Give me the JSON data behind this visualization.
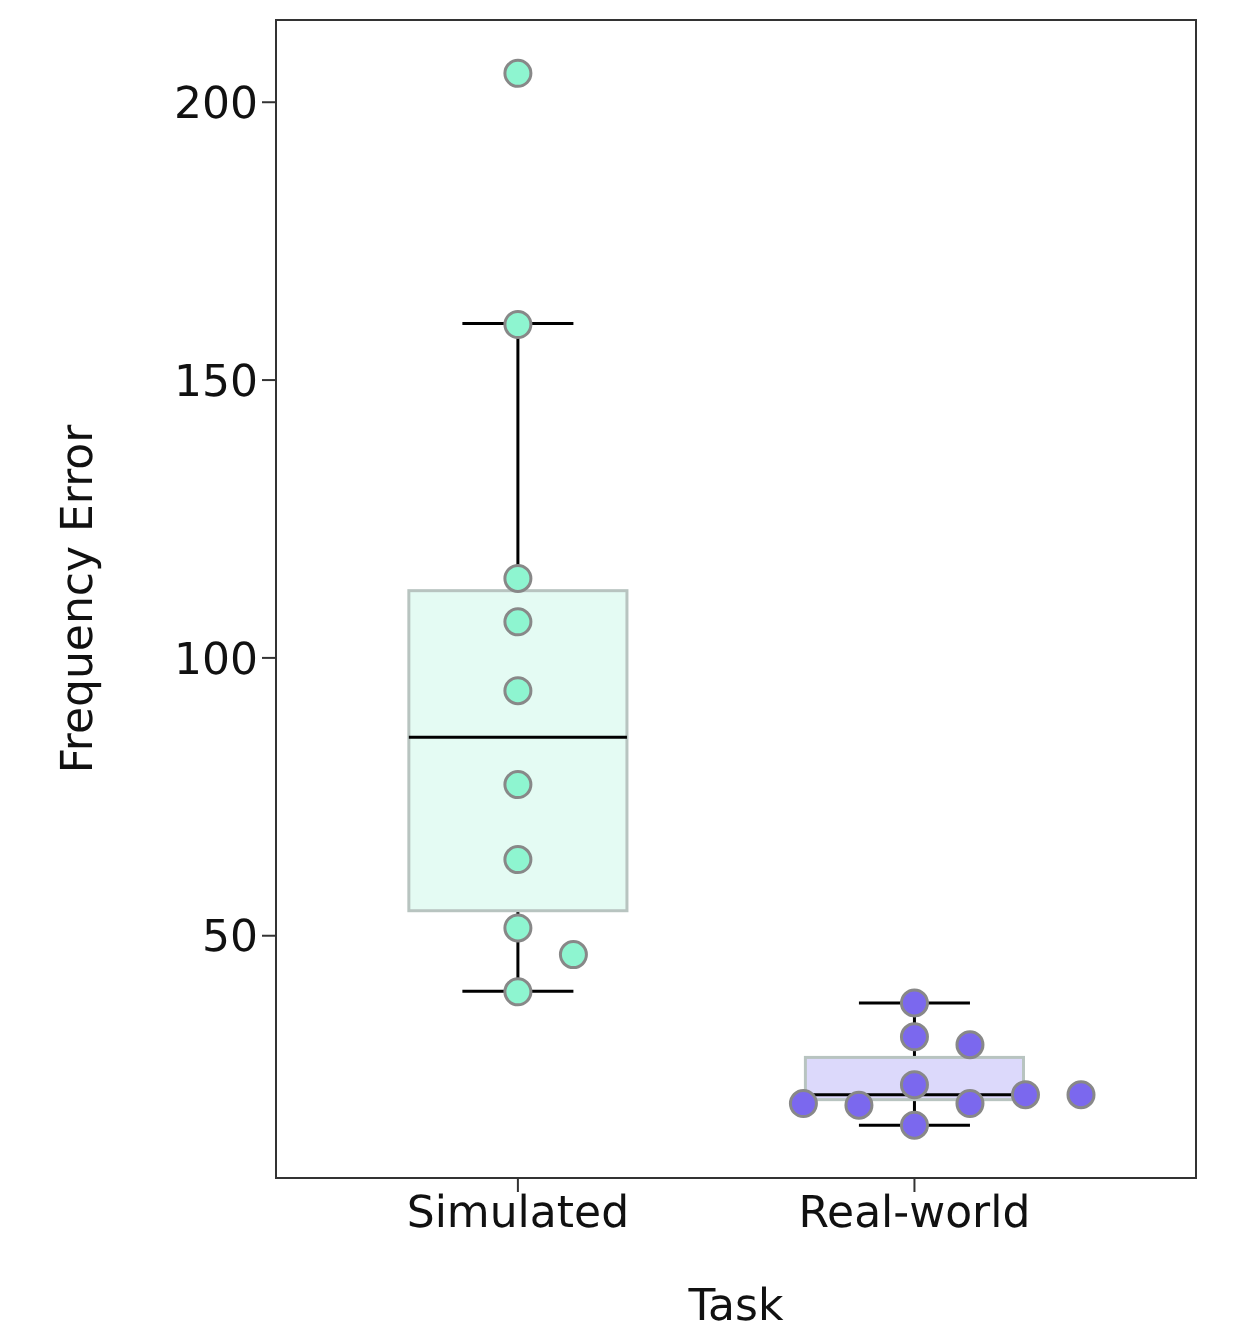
{
  "chart_data": {
    "type": "box",
    "xlabel": "Task",
    "ylabel": "Frequency Error",
    "categories": [
      "Simulated",
      "Real-world"
    ],
    "colors": [
      "#e4fbf3",
      "#dcd9fb"
    ],
    "boxes": [
      {
        "low": 40,
        "q1": 54.5,
        "median": 85.7,
        "q3": 112.1,
        "high": 160.2
      },
      {
        "low": 15.9,
        "q1": 20.5,
        "median": 21.4,
        "q3": 28.1,
        "high": 37.9
      }
    ],
    "series": [
      {
        "type": "scatter",
        "color": "#8ef5d0",
        "x": [
          "Simulated",
          "Simulated",
          "Simulated",
          "Simulated",
          "Simulated",
          "Simulated",
          "Simulated",
          "Simulated",
          "Simulated",
          "Simulated"
        ],
        "values": [
          205.2,
          160,
          114.3,
          106.5,
          94.1,
          77.2,
          63.7,
          51.4,
          46.6,
          39.9
        ]
      },
      {
        "type": "scatter",
        "color": "#7b68ee",
        "x": [
          "Real-world",
          "Real-world",
          "Real-world",
          "Real-world",
          "Real-world",
          "Real-world",
          "Real-world",
          "Real-world",
          "Real-world",
          "Real-world"
        ],
        "values": [
          37.9,
          31.8,
          30.4,
          23.2,
          19.8,
          19.5,
          21.4,
          19.8,
          21.4,
          15.9
        ]
      }
    ],
    "ylim": [
      6.4,
      214.8
    ],
    "yticks": [
      50,
      100,
      150,
      200
    ],
    "marker": "circle"
  }
}
